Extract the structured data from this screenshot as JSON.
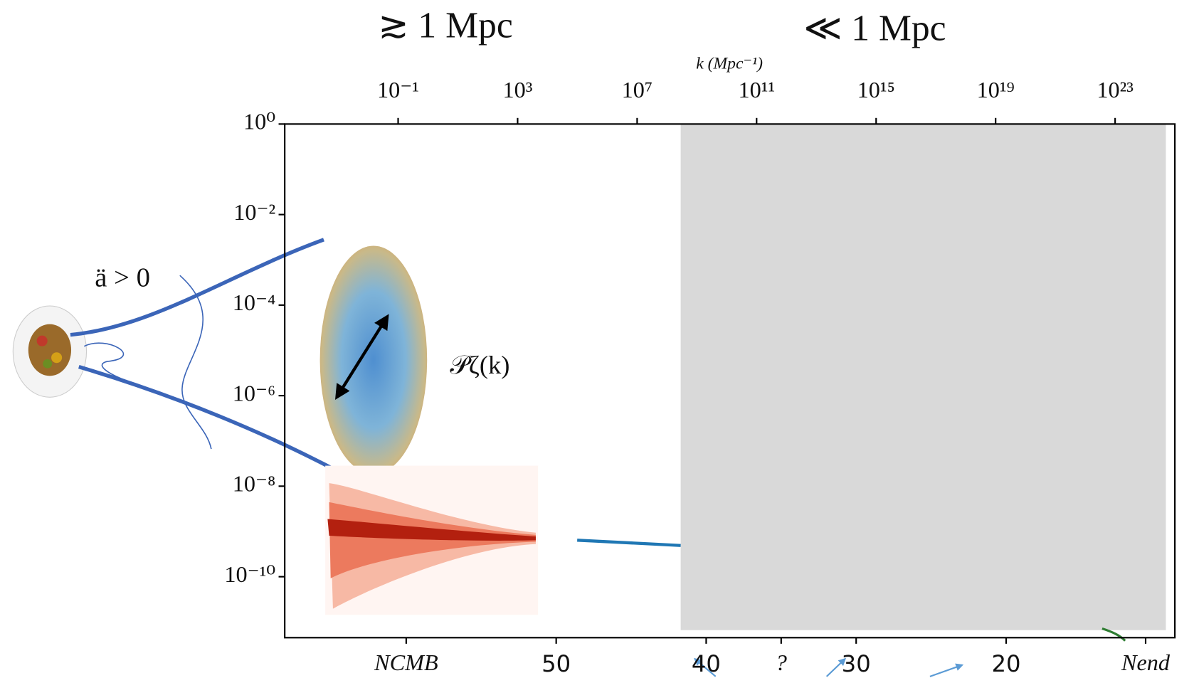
{
  "chart_data": {
    "type": "line",
    "header_left": "≳ 1 Mpc",
    "header_right": "≪ 1 Mpc",
    "top_axis_label": "k (Mpc⁻¹)",
    "annotations": [
      "ä > 0",
      "𝒫ζ(k)"
    ],
    "y_log": true,
    "ylim": [
      4.5e-12,
      1
    ],
    "yticks": [
      {
        "value": 1,
        "label": "10⁰"
      },
      {
        "value": 0.01,
        "label": "10⁻²"
      },
      {
        "value": 0.0001,
        "label": "10⁻⁴"
      },
      {
        "value": 1e-06,
        "label": "10⁻⁶"
      },
      {
        "value": 1e-08,
        "label": "10⁻⁸"
      },
      {
        "value": 1e-10,
        "label": "10⁻¹⁰"
      }
    ],
    "x_top_log": true,
    "x_top_lim": [
      1.6e-05,
      1e+25
    ],
    "x_top_ticks": [
      {
        "value": 0.1,
        "label": "10⁻¹"
      },
      {
        "value": 1000,
        "label": "10³"
      },
      {
        "value": 10000000.0,
        "label": "10⁷"
      },
      {
        "value": 100000000000.0,
        "label": "10¹¹"
      },
      {
        "value": 1000000000000000.0,
        "label": "10¹⁵"
      },
      {
        "value": 1e+19,
        "label": "10¹⁹"
      },
      {
        "value": 1e+23,
        "label": "10²³"
      }
    ],
    "xlim": [
      68.1,
      8.75
    ],
    "xticks": [
      {
        "value": 60,
        "label": "NCMB"
      },
      50,
      40,
      {
        "value": 35,
        "label": "?"
      },
      30,
      20,
      {
        "value": 10.7,
        "label": "Nend"
      }
    ],
    "shaded_region": {
      "x": [
        41.7,
        9.35
      ],
      "y": [
        6.6e-12,
        1
      ],
      "color": "#d9d9d9"
    },
    "series": [
      {
        "x": [
          48.6,
          41.7
        ],
        "values": [
          6.4e-10,
          4.9e-10
        ],
        "color": "#1f77b4"
      }
    ]
  }
}
